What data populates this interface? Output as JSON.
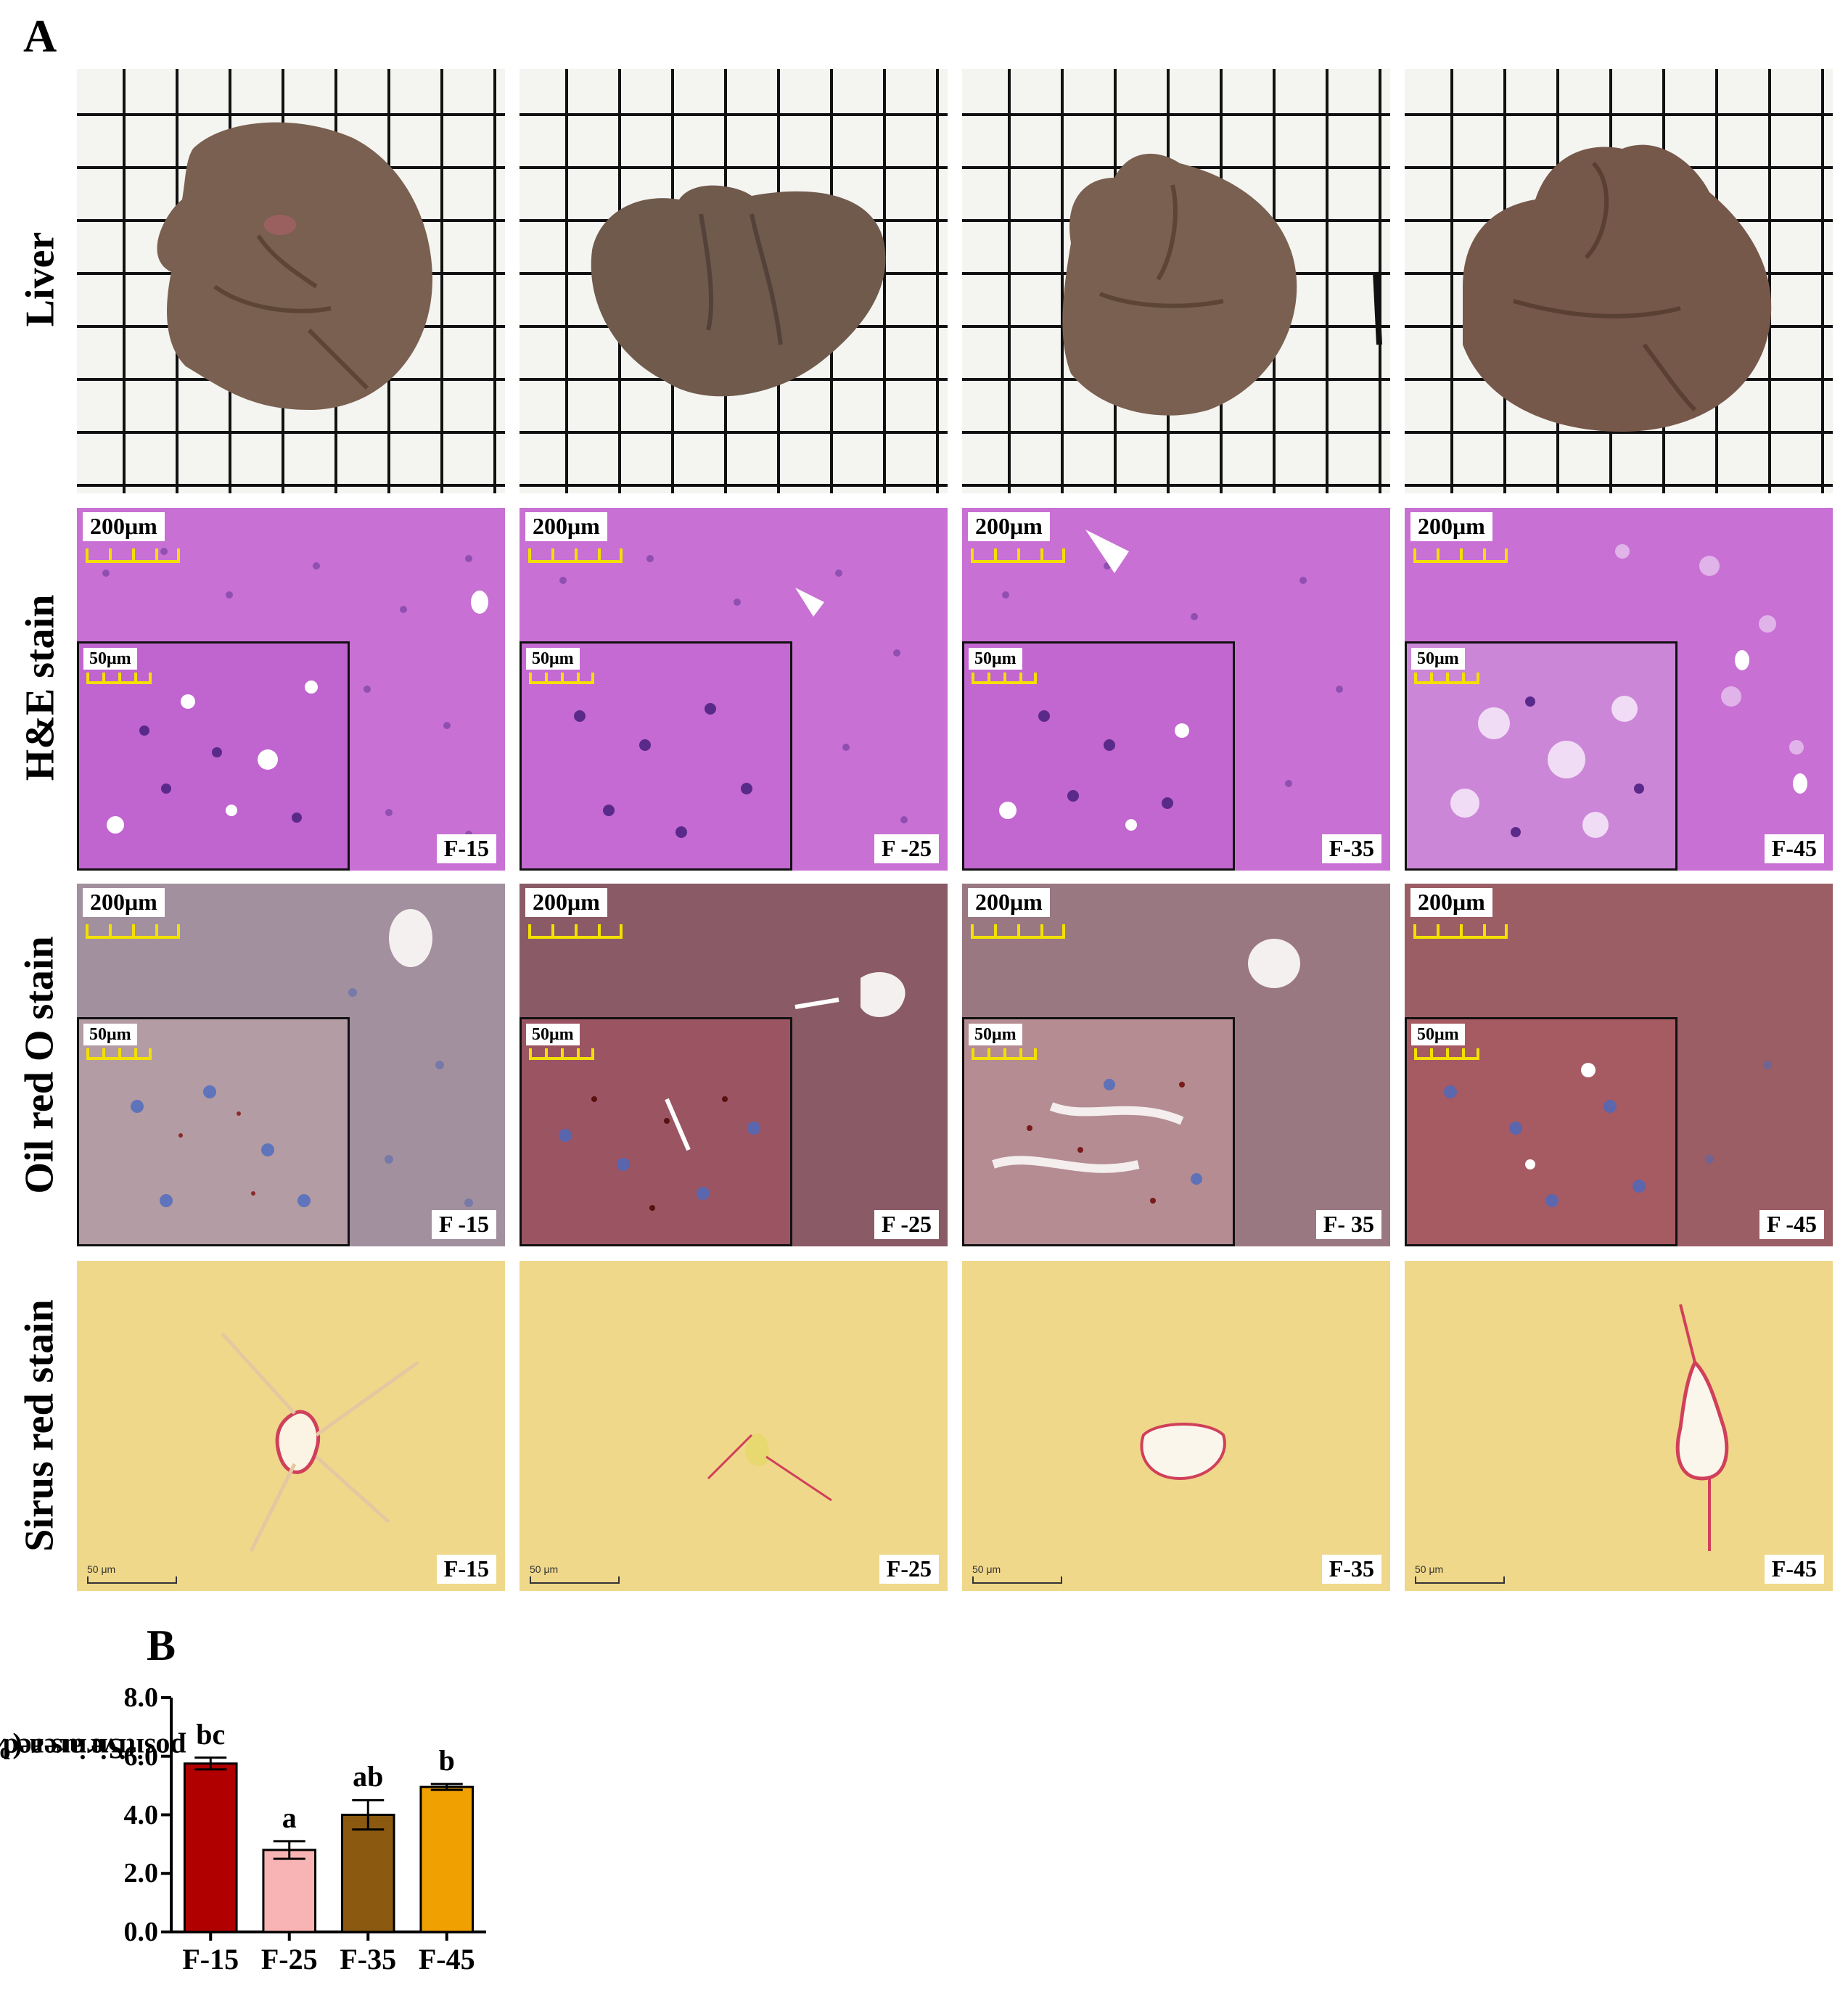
{
  "panel_a_label": "A",
  "panel_b_label": "B",
  "rows": [
    {
      "label": "Liberation Serif"
    },
    {
      "label": ""
    }
  ],
  "row_labels": [
    "Liver",
    "H&E stain",
    "Oil red O stain",
    "Sirus red stain"
  ],
  "he_tags": [
    "F-15",
    "F -25",
    "F-35",
    "F-45"
  ],
  "oro_tags": [
    "F -15",
    "F -25",
    "F- 35",
    "F -45"
  ],
  "sr_tags": [
    "F-15",
    "F-25",
    "F-35",
    "F-45"
  ],
  "scale_bar_large": "200μm",
  "scale_bar_small": "50μm",
  "scale_bar_sirius": "50 μm",
  "chart_data": {
    "type": "bar",
    "categories": [
      "F-15",
      "F-25",
      "F-35",
      "F-45"
    ],
    "values": [
      5.75,
      2.8,
      4.0,
      4.95
    ],
    "errors": [
      0.2,
      0.3,
      0.5,
      0.1
    ],
    "significance": [
      "bc",
      "a",
      "ab",
      "b"
    ],
    "colors": [
      "#b00000",
      "#f8b4b4",
      "#8b5a10",
      "#f0a000"
    ],
    "ylabel_line1": "Sirius red staining",
    "ylabel_line2": "positive area (%)",
    "yticks": [
      "0.0",
      "2.0",
      "4.0",
      "6.0",
      "8.0"
    ],
    "ylim": [
      0,
      8
    ],
    "xlabel": ""
  }
}
